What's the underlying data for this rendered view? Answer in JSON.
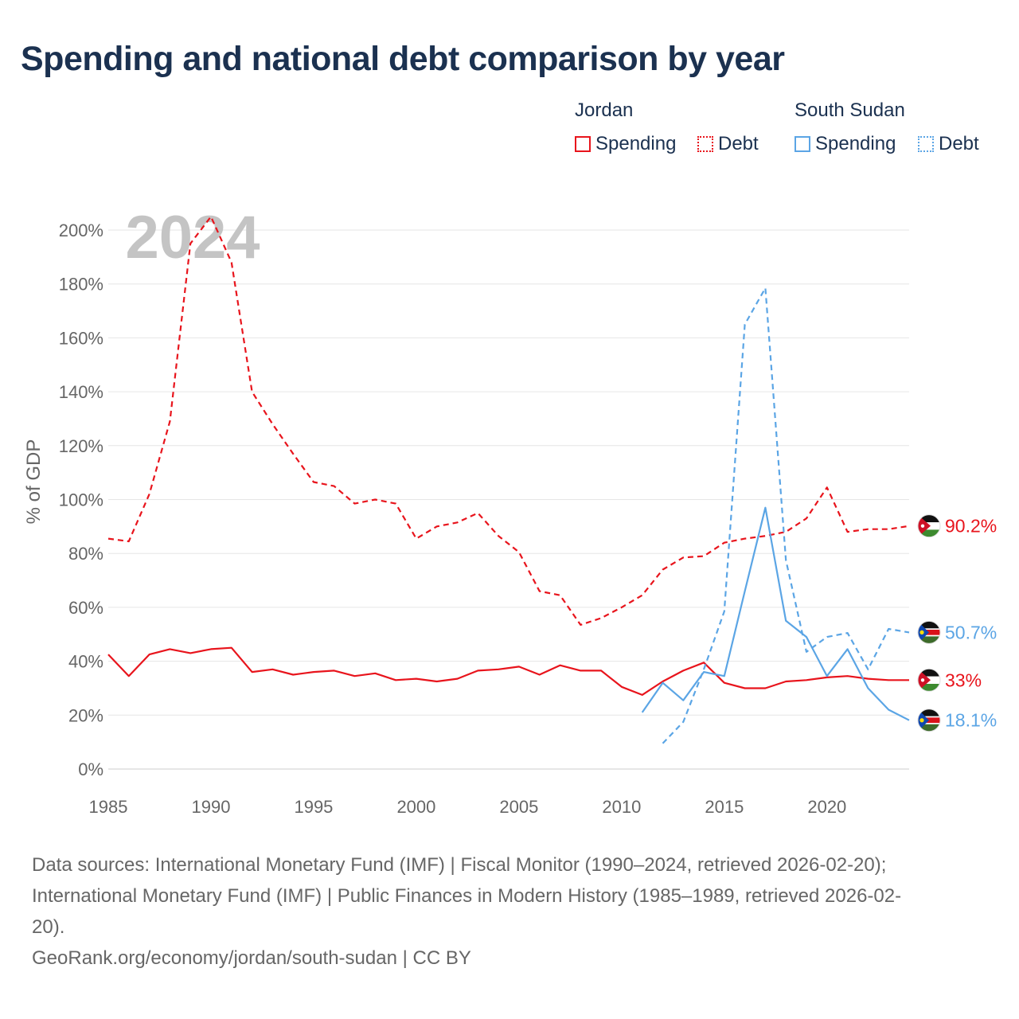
{
  "title": "Spending and national debt comparison by year",
  "legend": {
    "groups": [
      {
        "name": "Jordan",
        "color": "#e8141c",
        "items": [
          {
            "label": "Spending",
            "style": "solid"
          },
          {
            "label": "Debt",
            "style": "dotted"
          }
        ]
      },
      {
        "name": "South Sudan",
        "color": "#5ba5e5",
        "items": [
          {
            "label": "Spending",
            "style": "solid"
          },
          {
            "label": "Debt",
            "style": "dotted"
          }
        ]
      }
    ]
  },
  "year_watermark": "2024",
  "chart_data": {
    "type": "line",
    "ylabel": "% of GDP",
    "xlabel": "",
    "xlim": [
      1985,
      2024
    ],
    "ylim": [
      0,
      200
    ],
    "x_ticks": [
      1985,
      1990,
      1995,
      2000,
      2005,
      2010,
      2015,
      2020
    ],
    "y_ticks": [
      0,
      20,
      40,
      60,
      80,
      100,
      120,
      140,
      160,
      180,
      200
    ],
    "y_tick_labels": [
      "0%",
      "20%",
      "40%",
      "60%",
      "80%",
      "100%",
      "120%",
      "140%",
      "160%",
      "180%",
      "200%"
    ],
    "grid": true,
    "series": [
      {
        "name": "Jordan Debt",
        "country": "Jordan",
        "metric": "Debt",
        "color": "#e8141c",
        "dashed": true,
        "end_label": "90.2%",
        "points": [
          [
            1985,
            85.5
          ],
          [
            1986,
            84.5
          ],
          [
            1987,
            102
          ],
          [
            1988,
            129
          ],
          [
            1989,
            195
          ],
          [
            1990,
            205
          ],
          [
            1991,
            188
          ],
          [
            1992,
            140
          ],
          [
            1993,
            128
          ],
          [
            1994,
            117
          ],
          [
            1995,
            106.5
          ],
          [
            1996,
            105
          ],
          [
            1997,
            98.5
          ],
          [
            1998,
            100
          ],
          [
            1999,
            98.5
          ],
          [
            2000,
            85.5
          ],
          [
            2001,
            90
          ],
          [
            2002,
            91.5
          ],
          [
            2003,
            95
          ],
          [
            2004,
            86.5
          ],
          [
            2005,
            80.5
          ],
          [
            2006,
            66
          ],
          [
            2007,
            64.5
          ],
          [
            2008,
            53.5
          ],
          [
            2009,
            56
          ],
          [
            2010,
            60
          ],
          [
            2011,
            64.5
          ],
          [
            2012,
            74
          ],
          [
            2013,
            78.5
          ],
          [
            2014,
            79
          ],
          [
            2015,
            84
          ],
          [
            2016,
            85.5
          ],
          [
            2017,
            86.5
          ],
          [
            2018,
            88
          ],
          [
            2019,
            93
          ],
          [
            2020,
            104.5
          ],
          [
            2021,
            88
          ],
          [
            2022,
            89
          ],
          [
            2023,
            89
          ],
          [
            2024,
            90.2
          ]
        ]
      },
      {
        "name": "Jordan Spending",
        "country": "Jordan",
        "metric": "Spending",
        "color": "#e8141c",
        "dashed": false,
        "end_label": "33%",
        "points": [
          [
            1985,
            42.5
          ],
          [
            1986,
            34.5
          ],
          [
            1987,
            42.5
          ],
          [
            1988,
            44.5
          ],
          [
            1989,
            43
          ],
          [
            1990,
            44.5
          ],
          [
            1991,
            45
          ],
          [
            1992,
            36
          ],
          [
            1993,
            37
          ],
          [
            1994,
            35
          ],
          [
            1995,
            36
          ],
          [
            1996,
            36.5
          ],
          [
            1997,
            34.5
          ],
          [
            1998,
            35.5
          ],
          [
            1999,
            33
          ],
          [
            2000,
            33.5
          ],
          [
            2001,
            32.5
          ],
          [
            2002,
            33.5
          ],
          [
            2003,
            36.5
          ],
          [
            2004,
            37
          ],
          [
            2005,
            38
          ],
          [
            2006,
            35
          ],
          [
            2007,
            38.5
          ],
          [
            2008,
            36.5
          ],
          [
            2009,
            36.5
          ],
          [
            2010,
            30.5
          ],
          [
            2011,
            27.5
          ],
          [
            2012,
            32.5
          ],
          [
            2013,
            36.5
          ],
          [
            2014,
            39.5
          ],
          [
            2015,
            32
          ],
          [
            2016,
            30
          ],
          [
            2017,
            30
          ],
          [
            2018,
            32.5
          ],
          [
            2019,
            33
          ],
          [
            2020,
            34
          ],
          [
            2021,
            34.5
          ],
          [
            2022,
            33.5
          ],
          [
            2023,
            33
          ],
          [
            2024,
            33
          ]
        ]
      },
      {
        "name": "South Sudan Debt",
        "country": "South Sudan",
        "metric": "Debt",
        "color": "#5ba5e5",
        "dashed": true,
        "end_label": "50.7%",
        "points": [
          [
            2012,
            9.5
          ],
          [
            2013,
            17.5
          ],
          [
            2014,
            37
          ],
          [
            2015,
            58.5
          ],
          [
            2016,
            165
          ],
          [
            2017,
            178.5
          ],
          [
            2018,
            77.5
          ],
          [
            2019,
            43.5
          ],
          [
            2020,
            49
          ],
          [
            2021,
            50.5
          ],
          [
            2022,
            37
          ],
          [
            2023,
            52
          ],
          [
            2024,
            50.7
          ]
        ]
      },
      {
        "name": "South Sudan Spending",
        "country": "South Sudan",
        "metric": "Spending",
        "color": "#5ba5e5",
        "dashed": false,
        "end_label": "18.1%",
        "points": [
          [
            2011,
            21
          ],
          [
            2012,
            32
          ],
          [
            2013,
            25.5
          ],
          [
            2014,
            36
          ],
          [
            2015,
            34.5
          ],
          [
            2016,
            66
          ],
          [
            2017,
            97
          ],
          [
            2018,
            55
          ],
          [
            2019,
            49
          ],
          [
            2020,
            34.5
          ],
          [
            2021,
            44.5
          ],
          [
            2022,
            30
          ],
          [
            2023,
            22
          ],
          [
            2024,
            18.1
          ]
        ]
      }
    ]
  },
  "sources": {
    "line1": "Data sources: International Monetary Fund (IMF) | Fiscal Monitor (1990–2024, retrieved 2026-02-20);",
    "line2": "International Monetary Fund (IMF) | Public Finances in Modern History (1985–1989, retrieved 2026-02-",
    "line3": "20).",
    "credit": "GeoRank.org/economy/jordan/south-sudan | CC BY"
  }
}
